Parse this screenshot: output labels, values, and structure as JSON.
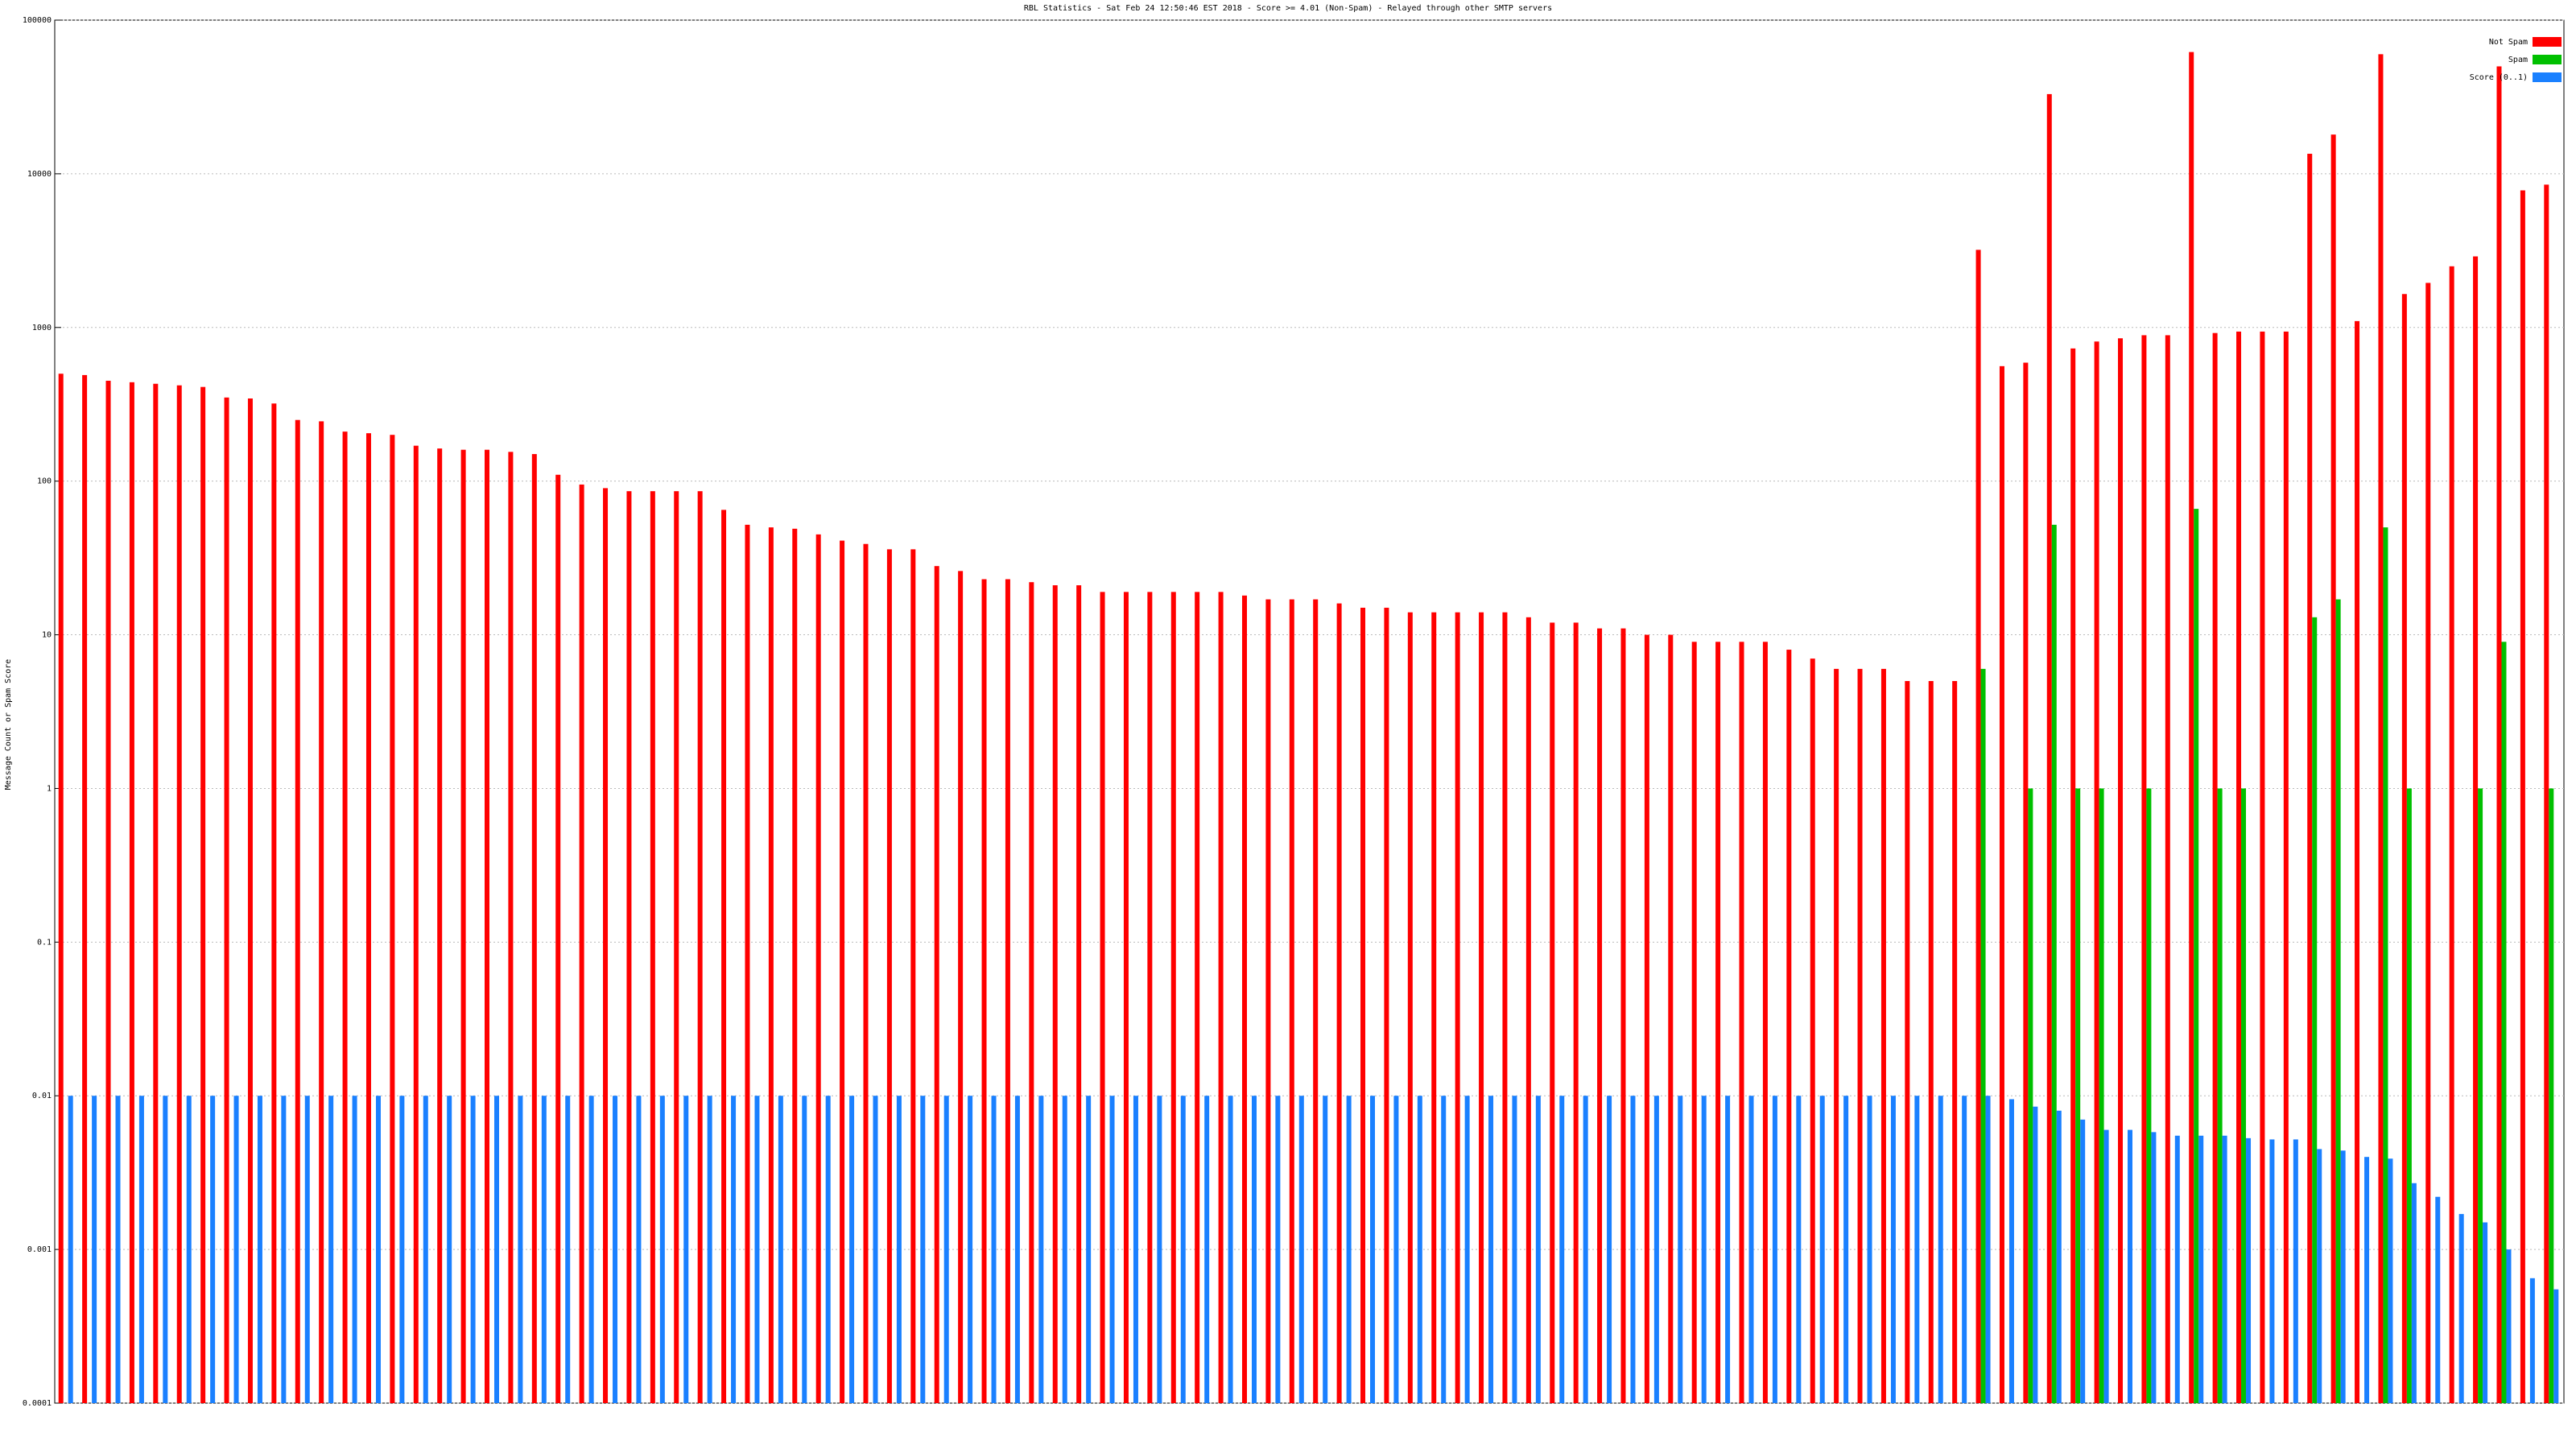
{
  "chart_data": {
    "type": "bar",
    "title": "RBL Statistics - Sat Feb 24 12:50:46 EST 2018 - Score >= 4.01 (Non-Spam) - Relayed through other SMTP servers",
    "y_label": "Message Count or Spam Score",
    "log_scale": true,
    "grid": true,
    "legend": "top-right",
    "categories": [
      null,
      null,
      null,
      null,
      null,
      null,
      null,
      null,
      null,
      null,
      null,
      null,
      null,
      null,
      null,
      null,
      null,
      null,
      null,
      null,
      null,
      null,
      null,
      null,
      null,
      null,
      null,
      null,
      null,
      null,
      null,
      null,
      null,
      null,
      null,
      null,
      null,
      null,
      null,
      null,
      null,
      null,
      null,
      null,
      null,
      null,
      null,
      null,
      null,
      null,
      null,
      null,
      null,
      null,
      null,
      null,
      null,
      null,
      null,
      null,
      null,
      null,
      null,
      null,
      null,
      null,
      null,
      null,
      null,
      null,
      null,
      null,
      null,
      null,
      null,
      null,
      null,
      null,
      null,
      null,
      null,
      null,
      null,
      null,
      null,
      null,
      null,
      null,
      null,
      null,
      null,
      null,
      null,
      null,
      null,
      null,
      null,
      null,
      null,
      null,
      null,
      null,
      null,
      null,
      null,
      null
    ],
    "series": [
      {
        "name": "Not Spam",
        "color": "#ff0000",
        "values": [
          500,
          490,
          450,
          440,
          430,
          420,
          410,
          350,
          345,
          320,
          250,
          245,
          210,
          205,
          200,
          170,
          163,
          160,
          160,
          155,
          150,
          110,
          95,
          90,
          86,
          86,
          86,
          86,
          65,
          52,
          50,
          49,
          45,
          41,
          39,
          36,
          36,
          28,
          26,
          23,
          23,
          22,
          21,
          21,
          19,
          19,
          19,
          19,
          19,
          19,
          18,
          17,
          17,
          17,
          16,
          15,
          15,
          14,
          14,
          14,
          14,
          14,
          13,
          12,
          12,
          11,
          11,
          10,
          10,
          9,
          9,
          9,
          9,
          8,
          7,
          6,
          6,
          6,
          5,
          5,
          5,
          3200,
          560,
          590,
          33000,
          730,
          810,
          850,
          890,
          890,
          62000,
          920,
          940,
          940,
          940,
          13500,
          18000,
          1100,
          60000,
          1650,
          1950,
          2500,
          2900,
          50000,
          7800,
          8500
        ]
      },
      {
        "name": "Spam",
        "color": "#00c000",
        "values": [
          null,
          null,
          null,
          null,
          null,
          null,
          null,
          null,
          null,
          null,
          null,
          null,
          null,
          null,
          null,
          null,
          null,
          null,
          null,
          null,
          null,
          null,
          null,
          null,
          null,
          null,
          null,
          null,
          null,
          null,
          null,
          null,
          null,
          null,
          null,
          null,
          null,
          null,
          null,
          null,
          null,
          null,
          null,
          null,
          null,
          null,
          null,
          null,
          null,
          null,
          null,
          null,
          null,
          null,
          null,
          null,
          null,
          null,
          null,
          null,
          null,
          null,
          null,
          null,
          null,
          null,
          null,
          null,
          null,
          null,
          null,
          null,
          null,
          null,
          null,
          null,
          null,
          null,
          null,
          null,
          null,
          6,
          null,
          1,
          52,
          1,
          1,
          null,
          1,
          null,
          66,
          1,
          1,
          null,
          null,
          13,
          17,
          null,
          50,
          1,
          null,
          null,
          1,
          9,
          null,
          1
        ]
      },
      {
        "name": "Score (0..1)",
        "color": "#1a80ff",
        "values": [
          0.01,
          0.01,
          0.01,
          0.01,
          0.01,
          0.01,
          0.01,
          0.01,
          0.01,
          0.01,
          0.01,
          0.01,
          0.01,
          0.01,
          0.01,
          0.01,
          0.01,
          0.01,
          0.01,
          0.01,
          0.01,
          0.01,
          0.01,
          0.01,
          0.01,
          0.01,
          0.01,
          0.01,
          0.01,
          0.01,
          0.01,
          0.01,
          0.01,
          0.01,
          0.01,
          0.01,
          0.01,
          0.01,
          0.01,
          0.01,
          0.01,
          0.01,
          0.01,
          0.01,
          0.01,
          0.01,
          0.01,
          0.01,
          0.01,
          0.01,
          0.01,
          0.01,
          0.01,
          0.01,
          0.01,
          0.01,
          0.01,
          0.01,
          0.01,
          0.01,
          0.01,
          0.01,
          0.01,
          0.01,
          0.01,
          0.01,
          0.01,
          0.01,
          0.01,
          0.01,
          0.01,
          0.01,
          0.01,
          0.01,
          0.01,
          0.01,
          0.01,
          0.01,
          0.01,
          0.01,
          0.01,
          0.01,
          0.0095,
          0.0085,
          0.008,
          0.007,
          0.006,
          0.006,
          0.0058,
          0.0055,
          0.0055,
          0.0055,
          0.0053,
          0.0052,
          0.0052,
          0.0045,
          0.0044,
          0.004,
          0.0039,
          0.0027,
          0.0022,
          0.0017,
          0.0015,
          0.001,
          0.00065,
          0.00055
        ]
      }
    ],
    "ylim": [
      0.0001,
      100000
    ],
    "yticks": [
      0.0001,
      0.001,
      0.01,
      0.1,
      1,
      10,
      100,
      1000,
      10000,
      100000
    ]
  }
}
